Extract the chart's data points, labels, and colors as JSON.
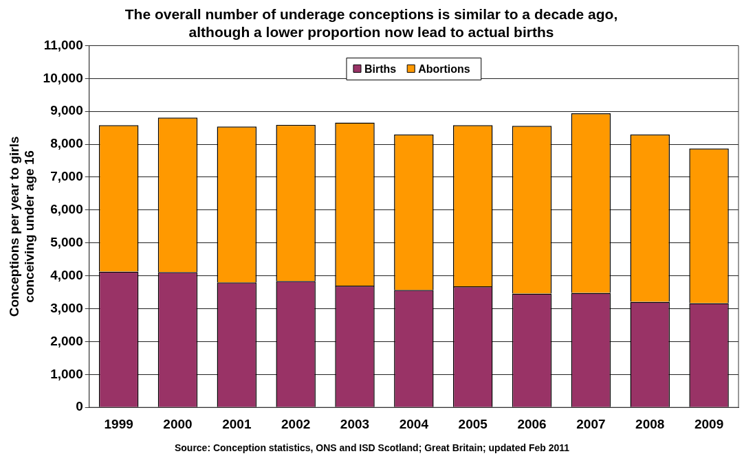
{
  "chart_data": {
    "type": "bar",
    "title": "The overall number of underage conceptions is similar to a decade ago,\nalthough a lower proportion now lead to actual births",
    "ylabel": "Conceptions per year to girls\nconceiving under age 16",
    "annotations": [
      "Source: Conception statistics, ONS and ISD Scotland; Great Britain; updated Feb 2011"
    ],
    "categories": [
      "1999",
      "2000",
      "2001",
      "2002",
      "2003",
      "2004",
      "2005",
      "2006",
      "2007",
      "2008",
      "2009"
    ],
    "series": [
      {
        "name": "Births",
        "color": "#993366",
        "values": [
          4130,
          4110,
          3800,
          3840,
          3700,
          3570,
          3680,
          3460,
          3480,
          3210,
          3170
        ]
      },
      {
        "name": "Abortions",
        "color": "#ff9900",
        "values": [
          4450,
          4700,
          4740,
          4750,
          4960,
          4730,
          4900,
          5100,
          5460,
          5090,
          4700
        ]
      }
    ],
    "stacked": true,
    "ylim": [
      0,
      11000
    ],
    "yticks": [
      0,
      {
        "value": 1000,
        "label": "1,000"
      },
      {
        "value": 2000,
        "label": "2,000"
      },
      {
        "value": 3000,
        "label": "3,000"
      },
      {
        "value": 4000,
        "label": "4,000"
      },
      {
        "value": 5000,
        "label": "5,000"
      },
      {
        "value": 6000,
        "label": "6,000"
      },
      {
        "value": 7000,
        "label": "7,000"
      },
      {
        "value": 8000,
        "label": "8,000"
      },
      {
        "value": 9000,
        "label": "9,000"
      },
      {
        "value": 10000,
        "label": "10,000"
      },
      {
        "value": 11000,
        "label": "11,000"
      }
    ],
    "grid": "y",
    "legend": "top"
  }
}
